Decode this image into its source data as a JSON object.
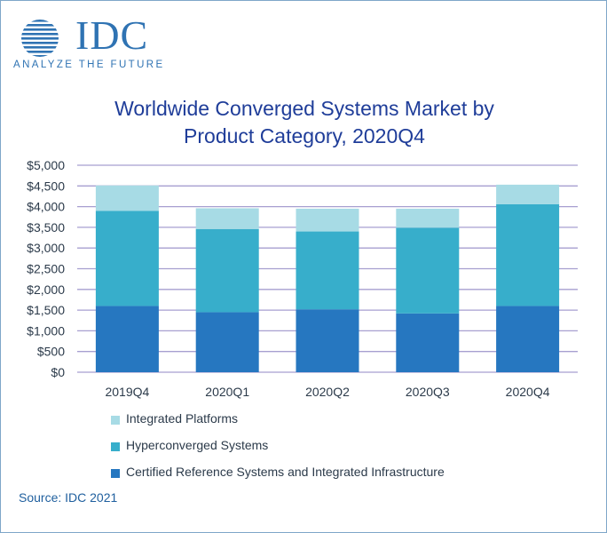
{
  "logo": {
    "wordmark": "IDC",
    "tagline": "ANALYZE THE FUTURE"
  },
  "colors": {
    "integrated_platforms": "#a7dbe5",
    "hyperconverged_systems": "#37aecb",
    "certified_reference": "#2677c0",
    "gridline": "#a79fd0",
    "brand": "#2f73b3",
    "title": "#1f3d99"
  },
  "chart_data": {
    "type": "bar",
    "stacked": true,
    "title": "Worldwide Converged Systems Market by Product Category, 2020Q4",
    "title_lines": [
      "Worldwide Converged Systems Market by",
      "Product Category, 2020Q4"
    ],
    "categories": [
      "2019Q4",
      "2020Q1",
      "2020Q2",
      "2020Q3",
      "2020Q4"
    ],
    "series": [
      {
        "name": "Certified Reference Systems and Integrated Infrastructure",
        "color_key": "certified_reference",
        "values": [
          1600,
          1450,
          1520,
          1420,
          1600
        ]
      },
      {
        "name": "Hyperconverged Systems",
        "color_key": "hyperconverged_systems",
        "values": [
          2300,
          2010,
          1880,
          2070,
          2460
        ]
      },
      {
        "name": "Integrated Platforms",
        "color_key": "integrated_platforms",
        "values": [
          610,
          500,
          550,
          460,
          470
        ]
      }
    ],
    "ylim": [
      0,
      5000
    ],
    "yticks": [
      "$0",
      "$500",
      "$1,000",
      "$1,500",
      "$2,000",
      "$2,500",
      "$3,000",
      "$3,500",
      "$4,000",
      "$4,500",
      "$5,000"
    ],
    "ytick_values": [
      0,
      500,
      1000,
      1500,
      2000,
      2500,
      3000,
      3500,
      4000,
      4500,
      5000
    ],
    "grid": true,
    "legend_position": "bottom",
    "xlabel": "",
    "ylabel": ""
  },
  "legend": [
    {
      "label": "Integrated Platforms",
      "color_key": "integrated_platforms"
    },
    {
      "label": "Hyperconverged Systems",
      "color_key": "hyperconverged_systems"
    },
    {
      "label": "Certified Reference Systems and Integrated Infrastructure",
      "color_key": "certified_reference"
    }
  ],
  "source": "Source: IDC 2021"
}
